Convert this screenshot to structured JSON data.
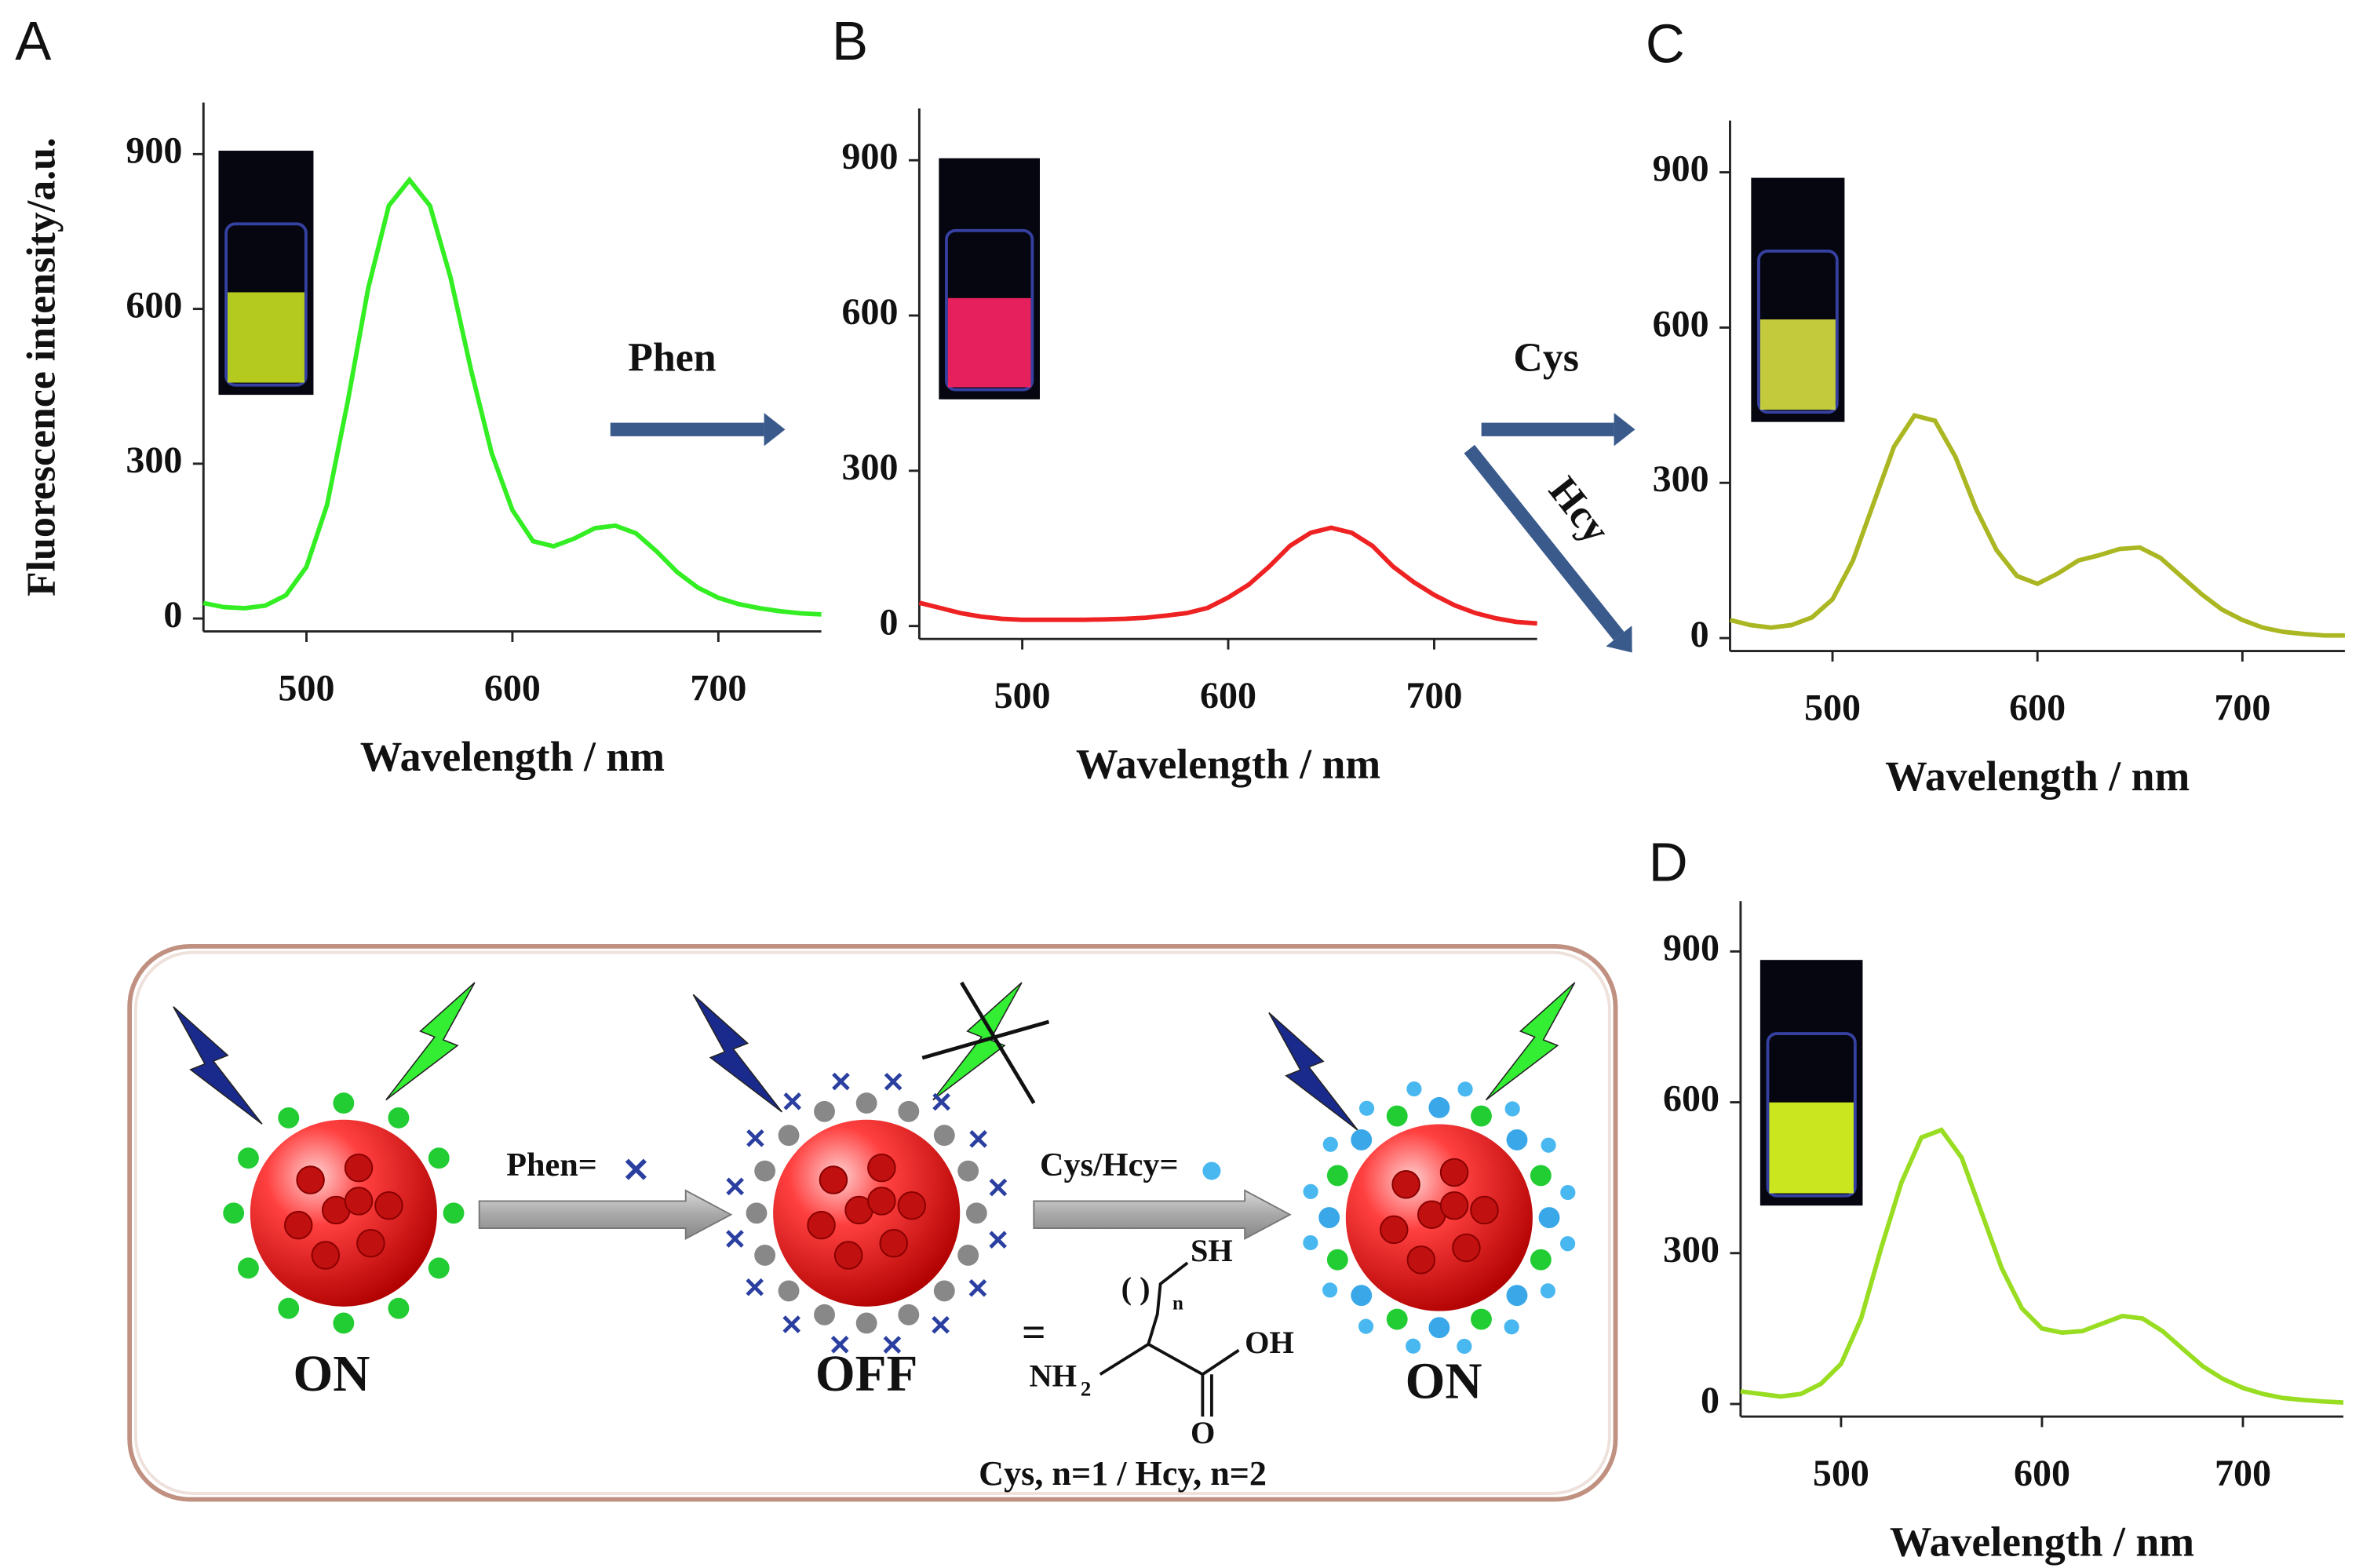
{
  "chart_data": [
    {
      "type": "line",
      "panel": "A",
      "ylabel": "Fluorescence intensity/a.u.",
      "xlabel": "Wavelength / nm",
      "color": "#33ee22",
      "x": [
        450,
        460,
        470,
        480,
        490,
        500,
        510,
        520,
        530,
        540,
        550,
        560,
        570,
        580,
        590,
        600,
        610,
        620,
        630,
        640,
        650,
        660,
        670,
        680,
        690,
        700,
        710,
        720,
        730,
        740,
        750
      ],
      "values": [
        30,
        22,
        20,
        25,
        45,
        100,
        220,
        420,
        640,
        800,
        850,
        800,
        660,
        480,
        320,
        210,
        150,
        140,
        155,
        175,
        180,
        165,
        130,
        90,
        60,
        40,
        28,
        20,
        14,
        10,
        8
      ],
      "xlim": [
        450,
        750
      ],
      "xticks": [
        500,
        600,
        700
      ],
      "ylim": [
        -25,
        1000
      ],
      "yticks": [
        0,
        300,
        600,
        900
      ]
    },
    {
      "type": "line",
      "panel": "B",
      "xlabel": "Wavelength / nm",
      "color": "#ee2222",
      "x": [
        450,
        460,
        470,
        480,
        490,
        500,
        510,
        520,
        530,
        540,
        550,
        560,
        570,
        580,
        590,
        600,
        610,
        620,
        630,
        640,
        650,
        660,
        670,
        680,
        690,
        700,
        710,
        720,
        730,
        740,
        750
      ],
      "values": [
        45,
        35,
        25,
        18,
        14,
        12,
        12,
        12,
        12,
        13,
        14,
        16,
        20,
        25,
        35,
        55,
        80,
        115,
        155,
        180,
        190,
        180,
        155,
        115,
        85,
        60,
        40,
        25,
        15,
        8,
        5
      ],
      "xlim": [
        450,
        750
      ],
      "xticks": [
        500,
        600,
        700
      ],
      "ylim": [
        -25,
        1000
      ],
      "yticks": [
        0,
        300,
        600,
        900
      ]
    },
    {
      "type": "line",
      "panel": "C",
      "xlabel": "Wavelength / nm",
      "color": "#aab722",
      "x": [
        450,
        460,
        470,
        480,
        490,
        500,
        510,
        520,
        530,
        540,
        550,
        560,
        570,
        580,
        590,
        600,
        610,
        620,
        630,
        640,
        650,
        660,
        670,
        680,
        690,
        700,
        710,
        720,
        730,
        740,
        750
      ],
      "values": [
        35,
        25,
        20,
        25,
        40,
        75,
        150,
        260,
        370,
        430,
        420,
        350,
        250,
        170,
        120,
        105,
        125,
        150,
        160,
        172,
        175,
        155,
        120,
        85,
        55,
        35,
        20,
        12,
        8,
        5,
        5
      ],
      "xlim": [
        450,
        750
      ],
      "xticks": [
        500,
        600,
        700
      ],
      "ylim": [
        -25,
        1000
      ],
      "yticks": [
        0,
        300,
        600,
        900
      ]
    },
    {
      "type": "line",
      "panel": "D",
      "xlabel": "Wavelength / nm",
      "color": "#99dd22",
      "x": [
        450,
        460,
        470,
        480,
        490,
        500,
        510,
        520,
        530,
        540,
        550,
        560,
        570,
        580,
        590,
        600,
        610,
        620,
        630,
        640,
        650,
        660,
        670,
        680,
        690,
        700,
        710,
        720,
        730,
        740,
        750
      ],
      "values": [
        25,
        20,
        15,
        20,
        40,
        80,
        170,
        310,
        440,
        530,
        545,
        490,
        380,
        270,
        190,
        150,
        142,
        145,
        160,
        175,
        170,
        145,
        110,
        75,
        50,
        32,
        20,
        12,
        8,
        5,
        3
      ],
      "xlim": [
        450,
        750
      ],
      "xticks": [
        500,
        600,
        700
      ],
      "ylim": [
        -25,
        1000
      ],
      "yticks": [
        0,
        300,
        600,
        900
      ]
    }
  ],
  "arrows": [
    {
      "label": "Phen"
    },
    {
      "label": "Cys"
    },
    {
      "label": "Hcy"
    }
  ],
  "scheme": {
    "state1": "ON",
    "state2": "OFF",
    "state3": "ON",
    "step1": "Phen=",
    "step2": "Cys/Hcy=",
    "structure": {
      "sh": "SH",
      "paren": "(  )",
      "n": "n",
      "nh": "NH",
      "sub2": "2",
      "oh": "OH",
      "o": "O",
      "eq": "="
    },
    "caption": "Cys, n=1 / Hcy, n=2"
  }
}
